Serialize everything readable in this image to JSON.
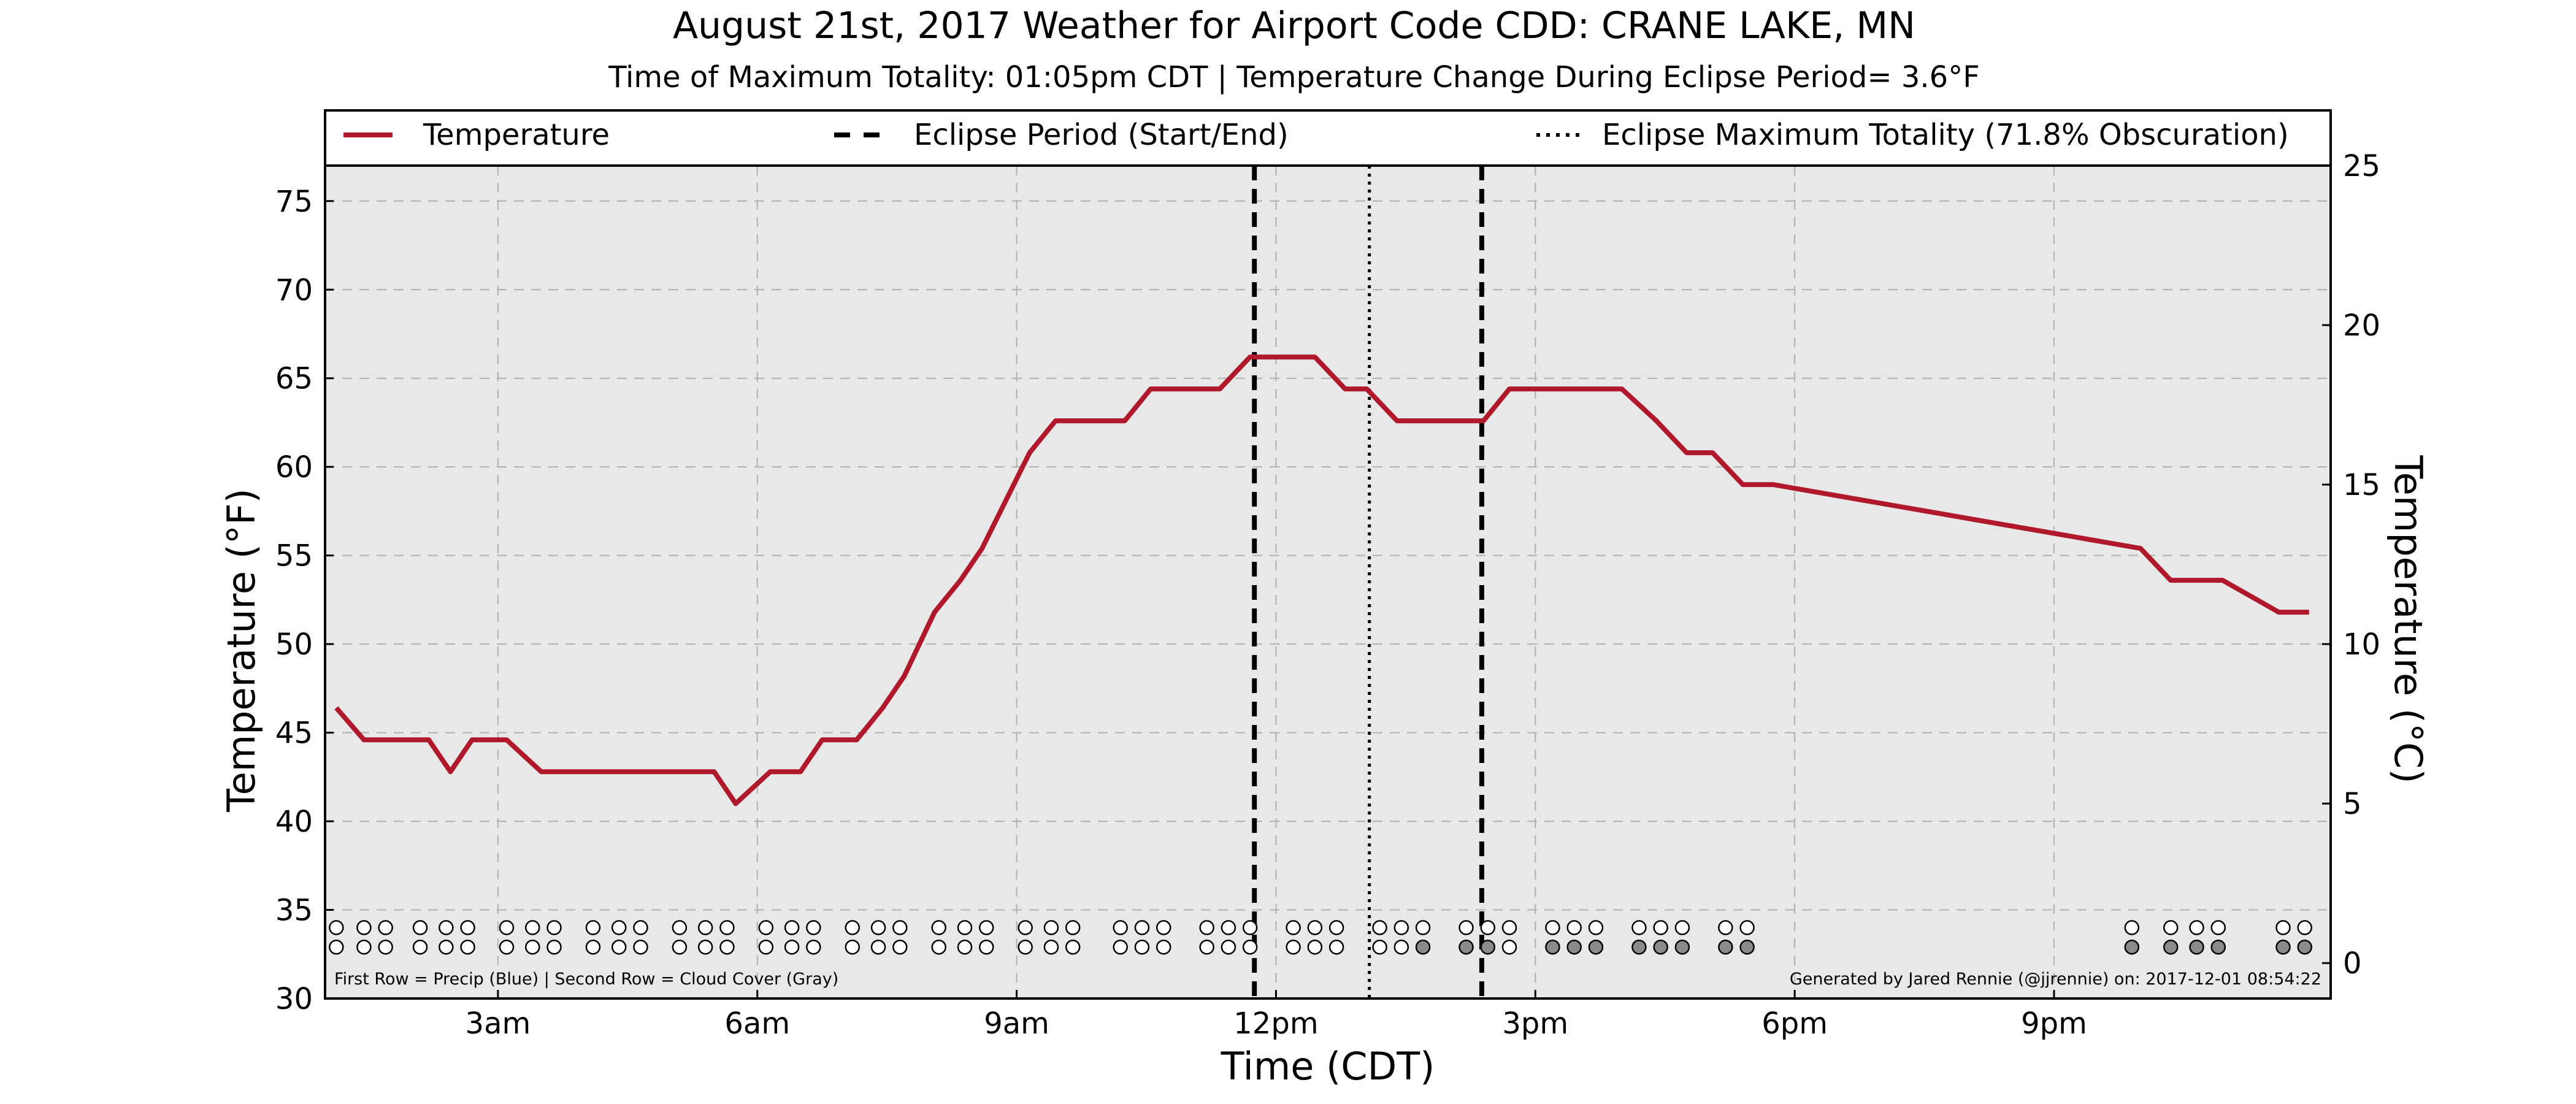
{
  "chart_data": {
    "type": "line",
    "title": "August 21st, 2017 Weather for Airport Code CDD: CRANE LAKE, MN",
    "subtitle": "Time of Maximum Totality: 01:05pm CDT | Temperature Change During Eclipse Period= 3.6°F",
    "xlabel": "Time (CDT)",
    "ylabel": "Temperature (°F)",
    "ylabel_right": "Temperature (°C)",
    "xlim": [
      1.0,
      24.2
    ],
    "ylim": [
      30,
      77
    ],
    "ylim_right_c": [
      -1.111,
      25
    ],
    "x_ticks": [
      {
        "x": 3,
        "label": "3am"
      },
      {
        "x": 6,
        "label": "6am"
      },
      {
        "x": 9,
        "label": "9am"
      },
      {
        "x": 12,
        "label": "12pm"
      },
      {
        "x": 15,
        "label": "3pm"
      },
      {
        "x": 18,
        "label": "6pm"
      },
      {
        "x": 21,
        "label": "9pm"
      }
    ],
    "y_ticks": [
      30,
      35,
      40,
      45,
      50,
      55,
      60,
      65,
      70,
      75
    ],
    "y_ticks_right": [
      0,
      5,
      10,
      15,
      20,
      25
    ],
    "grid": true,
    "legend_position": "top",
    "legend": [
      {
        "label": "Temperature",
        "style": "solid"
      },
      {
        "label": "Eclipse Period (Start/End)",
        "style": "dashed"
      },
      {
        "label": "Eclipse Maximum Totality (71.8% Obscuration)",
        "style": "dotted"
      }
    ],
    "series": [
      {
        "name": "Temperature",
        "color": "#b0182b",
        "points": [
          [
            1.13,
            46.4
          ],
          [
            1.45,
            44.6
          ],
          [
            1.95,
            44.6
          ],
          [
            2.2,
            44.6
          ],
          [
            2.45,
            42.8
          ],
          [
            2.7,
            44.6
          ],
          [
            3.1,
            44.6
          ],
          [
            3.5,
            42.8
          ],
          [
            4.5,
            42.8
          ],
          [
            5.5,
            42.8
          ],
          [
            5.75,
            41.0
          ],
          [
            6.15,
            42.8
          ],
          [
            6.5,
            42.8
          ],
          [
            6.75,
            44.6
          ],
          [
            7.15,
            44.6
          ],
          [
            7.45,
            46.4
          ],
          [
            7.7,
            48.2
          ],
          [
            8.05,
            51.8
          ],
          [
            8.35,
            53.6
          ],
          [
            8.6,
            55.4
          ],
          [
            9.15,
            60.8
          ],
          [
            9.45,
            62.6
          ],
          [
            10.25,
            62.6
          ],
          [
            10.55,
            64.4
          ],
          [
            11.35,
            64.4
          ],
          [
            11.7,
            66.2
          ],
          [
            12.45,
            66.2
          ],
          [
            12.8,
            64.4
          ],
          [
            13.05,
            64.4
          ],
          [
            13.4,
            62.6
          ],
          [
            14.4,
            62.6
          ],
          [
            14.7,
            64.4
          ],
          [
            16.0,
            64.4
          ],
          [
            16.4,
            62.6
          ],
          [
            16.75,
            60.8
          ],
          [
            17.05,
            60.8
          ],
          [
            17.4,
            59.0
          ],
          [
            17.75,
            59.0
          ],
          [
            22.0,
            55.4
          ],
          [
            22.35,
            53.6
          ],
          [
            22.95,
            53.6
          ],
          [
            23.6,
            51.8
          ],
          [
            23.95,
            51.8
          ]
        ]
      }
    ],
    "eclipse_start": 11.75,
    "eclipse_end": 14.38,
    "eclipse_max": 13.08,
    "dot_rows": {
      "row1_label": "Precip",
      "row2_label": "Cloud Cover",
      "times": [
        1.13,
        1.45,
        1.7,
        2.1,
        2.4,
        2.65,
        3.1,
        3.4,
        3.65,
        4.1,
        4.4,
        4.65,
        5.1,
        5.4,
        5.65,
        6.1,
        6.4,
        6.65,
        7.1,
        7.4,
        7.65,
        8.1,
        8.4,
        8.65,
        9.1,
        9.4,
        9.65,
        10.2,
        10.45,
        10.7,
        11.2,
        11.45,
        11.7,
        12.2,
        12.45,
        12.7,
        13.2,
        13.45,
        13.7,
        14.2,
        14.45,
        14.7,
        15.2,
        15.45,
        15.7,
        16.2,
        16.45,
        16.7,
        17.2,
        17.45,
        21.9,
        22.35,
        22.65,
        22.9,
        23.65,
        23.9
      ],
      "row1": [
        0,
        0,
        0,
        0,
        0,
        0,
        0,
        0,
        0,
        0,
        0,
        0,
        0,
        0,
        0,
        0,
        0,
        0,
        0,
        0,
        0,
        0,
        0,
        0,
        0,
        0,
        0,
        0,
        0,
        0,
        0,
        0,
        0,
        0,
        0,
        0,
        0,
        0,
        0,
        0,
        0,
        0,
        0,
        0,
        0,
        0,
        0,
        0,
        0,
        0,
        0,
        0,
        0,
        0,
        0,
        0
      ],
      "row2": [
        0,
        0,
        0,
        0,
        0,
        0,
        0,
        0,
        0,
        0,
        0,
        0,
        0,
        0,
        0,
        0,
        0,
        0,
        0,
        0,
        0,
        0,
        0,
        0,
        0,
        0,
        0,
        0,
        0,
        0,
        0,
        0,
        0,
        0,
        0,
        0,
        0,
        0,
        1,
        1,
        1,
        0,
        1,
        1,
        1,
        1,
        1,
        1,
        1,
        1,
        1,
        1,
        1,
        1,
        1,
        1
      ]
    },
    "footer_left": "First Row = Precip (Blue) | Second Row = Cloud Cover (Gray)",
    "footer_right": "Generated by Jared Rennie (@jjrennie) on: 2017-12-01 08:54:22"
  }
}
